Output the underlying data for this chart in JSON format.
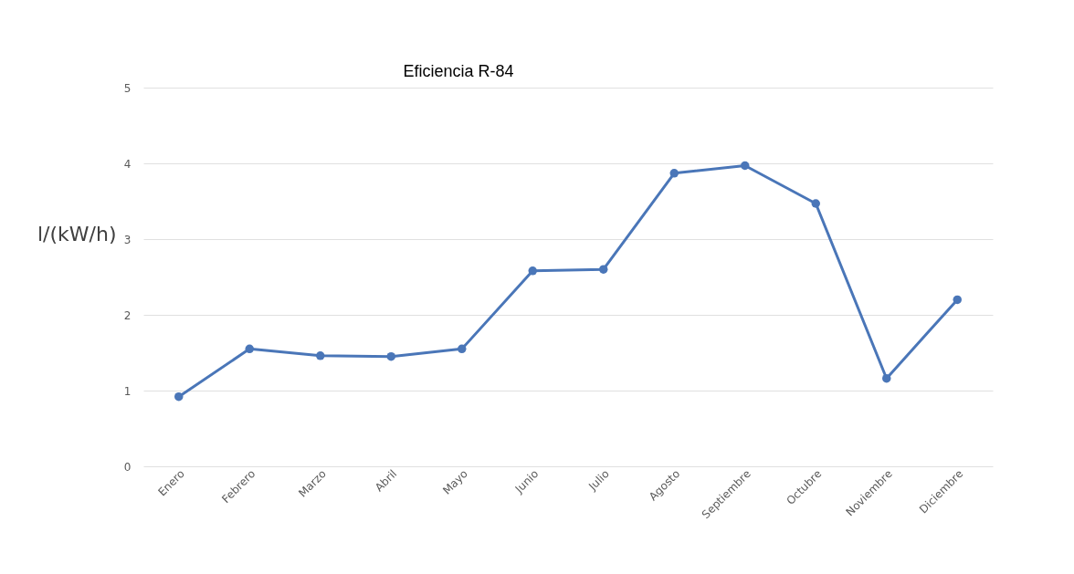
{
  "chart_data": {
    "type": "line",
    "title": "Eficiencia R-84",
    "ylabel": "l/(kW/h)",
    "categories": [
      "Enero",
      "Febrero",
      "Marzo",
      "Abril",
      "Mayo",
      "Junio",
      "Julio",
      "Agosto",
      "Septiembre",
      "Octubre",
      "Noviembre",
      "Diciembre"
    ],
    "series": [
      {
        "color": "#4a76b8",
        "values": [
          0.92,
          1.55,
          1.46,
          1.45,
          1.55,
          2.58,
          2.6,
          3.87,
          3.97,
          3.47,
          1.16,
          2.2
        ]
      }
    ],
    "ylim": [
      0,
      5
    ],
    "yticks": [
      0,
      1,
      2,
      3,
      4,
      5
    ],
    "grid": "y",
    "marker": "circle",
    "line_style": "solid"
  }
}
